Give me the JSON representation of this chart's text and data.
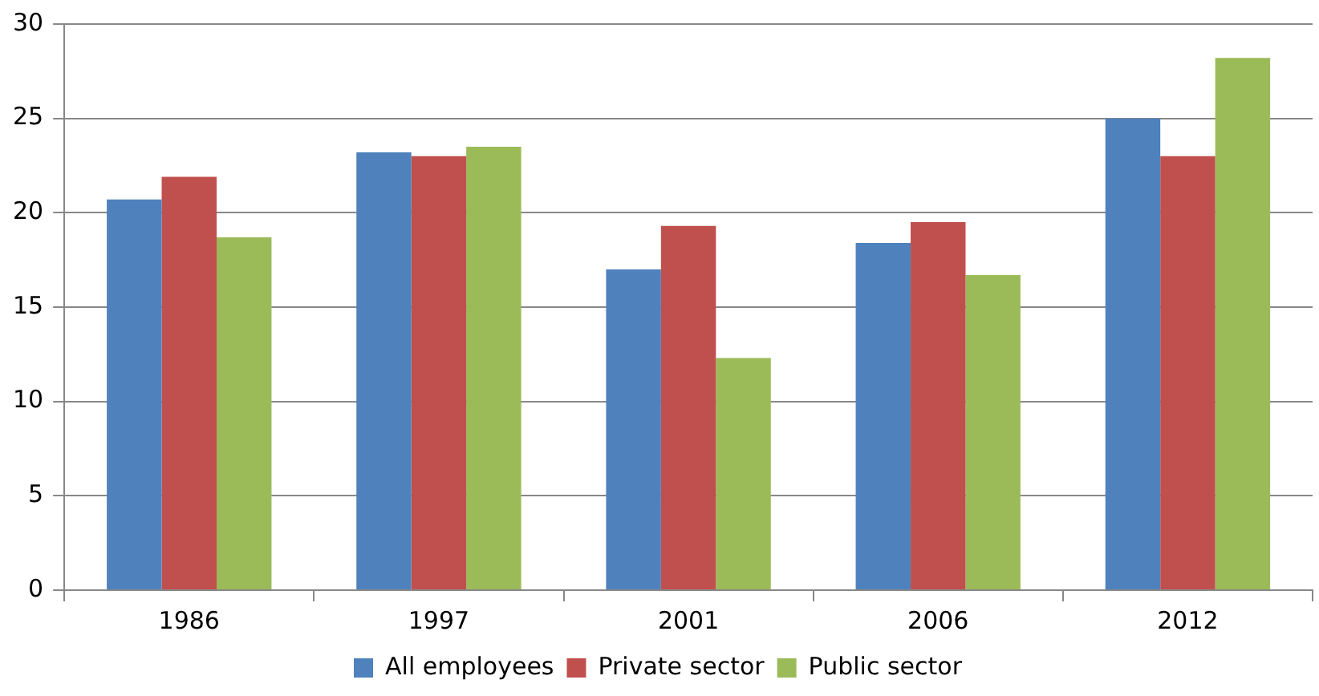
{
  "chart_data": {
    "type": "bar",
    "categories": [
      "1986",
      "1997",
      "2001",
      "2006",
      "2012"
    ],
    "series": [
      {
        "name": "All employees",
        "color": "#4f81bd",
        "values": [
          20.7,
          23.2,
          17.0,
          18.4,
          25.0
        ]
      },
      {
        "name": "Private sector",
        "color": "#c0504d",
        "values": [
          21.9,
          23.0,
          19.3,
          19.5,
          23.0
        ]
      },
      {
        "name": "Public sector",
        "color": "#9bbb59",
        "values": [
          18.7,
          23.5,
          12.3,
          16.7,
          28.2
        ]
      }
    ],
    "ylim": [
      0,
      30
    ],
    "yticks": [
      0,
      5,
      10,
      15,
      20,
      25,
      30
    ],
    "grid": "y",
    "legend": "bottom"
  }
}
